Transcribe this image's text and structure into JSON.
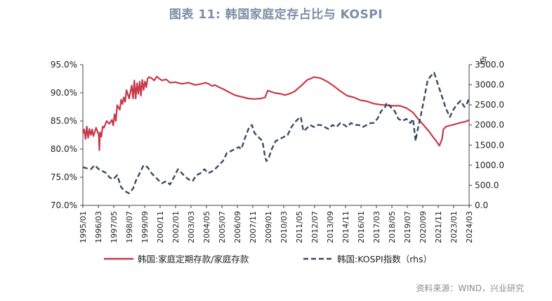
{
  "title": "图表 11: 韩国家庭定存占比与 KOSPI",
  "source": "资料来源：WIND，兴业研究",
  "chart_data": {
    "type": "line",
    "y_left": {
      "ticks": [
        "95.0%",
        "90.0%",
        "85.0%",
        "80.0%",
        "75.0%",
        "70.0%"
      ],
      "range": [
        70,
        95
      ]
    },
    "y_right": {
      "label": "点",
      "ticks": [
        "3500.0",
        "3000.0",
        "2500.0",
        "2000.0",
        "1500.0",
        "1000.0",
        "500.0",
        "0.0"
      ],
      "range": [
        0,
        3500
      ]
    },
    "x_ticks": [
      "1995/01",
      "1996/03",
      "1997/05",
      "1998/07",
      "1999/09",
      "2000/11",
      "2002/01",
      "2003/03",
      "2004/05",
      "2005/07",
      "2006/09",
      "2007/11",
      "2009/01",
      "2010/03",
      "2011/05",
      "2012/07",
      "2013/09",
      "2014/11",
      "2016/01",
      "2017/03",
      "2018/05",
      "2019/07",
      "2020/09",
      "2021/11",
      "2023/01",
      "2024/03"
    ],
    "series": [
      {
        "name": "韩国:家庭定期存款/家庭存款",
        "axis": "left",
        "color": "#c8394b",
        "style": "solid",
        "x": [
          1995.0,
          1995.1,
          1995.2,
          1995.3,
          1995.4,
          1995.5,
          1995.6,
          1995.7,
          1995.8,
          1996.0,
          1996.2,
          1996.25,
          1996.3,
          1996.4,
          1996.5,
          1996.6,
          1996.8,
          1997.0,
          1997.2,
          1997.3,
          1997.4,
          1997.5,
          1997.6,
          1997.8,
          1997.9,
          1998.0,
          1998.1,
          1998.2,
          1998.3,
          1998.5,
          1998.7,
          1998.8,
          1998.9,
          1999.0,
          1999.1,
          1999.2,
          1999.3,
          1999.4,
          1999.5,
          1999.6,
          1999.7,
          1999.8,
          1999.9,
          2000.0,
          2000.2,
          2000.4,
          2000.6,
          2000.8,
          2001.0,
          2001.3,
          2001.6,
          2002.0,
          2002.5,
          2003.0,
          2003.5,
          2004.0,
          2004.3,
          2004.6,
          2004.8,
          2005.0,
          2005.3,
          2005.6,
          2006.0,
          2006.5,
          2006.8,
          2007.0,
          2007.5,
          2008.0,
          2008.5,
          2008.8,
          2009.0,
          2009.5,
          2010.0,
          2010.3,
          2010.6,
          2011.0,
          2011.5,
          2012.0,
          2012.5,
          2013.0,
          2013.5,
          2014.0,
          2014.5,
          2015.0,
          2015.5,
          2016.0,
          2016.5,
          2017.0,
          2017.5,
          2018.0,
          2018.5,
          2019.0,
          2019.5,
          2020.0,
          2020.3,
          2020.6,
          2020.9,
          2021.2,
          2021.5,
          2021.8,
          2022.0,
          2022.2,
          2022.3,
          2022.5,
          2022.8,
          2023.0,
          2023.3,
          2023.6,
          2024.0,
          2024.3
        ],
        "y": [
          82.8,
          83.5,
          81.8,
          84.0,
          82.0,
          83.6,
          82.5,
          83.5,
          82.3,
          83.8,
          82.5,
          79.8,
          83.0,
          82.2,
          84.0,
          83.8,
          85.0,
          84.5,
          85.2,
          84.2,
          86.2,
          85.0,
          87.8,
          87.0,
          88.8,
          88.0,
          89.2,
          88.4,
          90.5,
          89.0,
          91.3,
          89.0,
          92.2,
          89.0,
          91.7,
          89.8,
          92.0,
          89.5,
          92.3,
          90.5,
          92.0,
          91.0,
          92.5,
          92.8,
          92.6,
          92.2,
          92.9,
          92.5,
          92.2,
          92.4,
          91.8,
          91.9,
          91.6,
          91.8,
          91.4,
          91.6,
          91.8,
          91.5,
          91.2,
          91.4,
          91.0,
          90.7,
          90.2,
          89.6,
          89.4,
          89.3,
          89.0,
          88.9,
          89.0,
          89.2,
          90.4,
          90.0,
          89.8,
          89.6,
          89.8,
          90.2,
          91.2,
          92.3,
          92.8,
          92.6,
          92.0,
          91.2,
          90.3,
          89.5,
          89.2,
          88.7,
          88.5,
          88.1,
          87.9,
          87.8,
          87.7,
          87.7,
          87.3,
          86.5,
          85.6,
          84.8,
          84.0,
          83.2,
          82.2,
          81.3,
          80.6,
          81.8,
          83.5,
          84.0,
          84.2,
          84.3,
          84.5,
          84.7,
          84.9,
          85.2
        ]
      },
      {
        "name": "韩国:KOSPI指数（rhs）",
        "axis": "right",
        "color": "#3a4a63",
        "style": "dashed",
        "x": [
          1995.0,
          1995.3,
          1995.6,
          1995.9,
          1996.2,
          1996.5,
          1996.8,
          1997.0,
          1997.3,
          1997.6,
          1997.9,
          1998.2,
          1998.5,
          1998.8,
          1999.0,
          1999.3,
          1999.6,
          1999.9,
          2000.2,
          2000.5,
          2000.8,
          2001.0,
          2001.3,
          2001.6,
          2001.9,
          2002.2,
          2002.5,
          2002.8,
          2003.0,
          2003.3,
          2003.6,
          2003.9,
          2004.2,
          2004.5,
          2004.8,
          2005.0,
          2005.3,
          2005.6,
          2005.9,
          2006.2,
          2006.5,
          2006.8,
          2007.0,
          2007.3,
          2007.6,
          2007.8,
          2008.0,
          2008.3,
          2008.6,
          2008.8,
          2008.9,
          2009.1,
          2009.3,
          2009.6,
          2009.9,
          2010.2,
          2010.5,
          2010.8,
          2011.0,
          2011.3,
          2011.5,
          2011.7,
          2011.9,
          2012.2,
          2012.5,
          2012.8,
          2013.0,
          2013.3,
          2013.6,
          2013.9,
          2014.2,
          2014.5,
          2014.8,
          2015.0,
          2015.3,
          2015.6,
          2015.9,
          2016.2,
          2016.5,
          2016.8,
          2017.0,
          2017.3,
          2017.6,
          2017.9,
          2018.0,
          2018.3,
          2018.6,
          2018.9,
          2019.2,
          2019.5,
          2019.8,
          2020.0,
          2020.2,
          2020.3,
          2020.6,
          2020.9,
          2021.1,
          2021.3,
          2021.6,
          2021.9,
          2022.2,
          2022.5,
          2022.8,
          2023.0,
          2023.3,
          2023.6,
          2023.9,
          2024.1,
          2024.3
        ],
        "y": [
          950,
          920,
          900,
          1000,
          900,
          850,
          800,
          700,
          650,
          750,
          450,
          350,
          300,
          420,
          600,
          800,
          1000,
          950,
          800,
          700,
          600,
          550,
          600,
          520,
          700,
          900,
          800,
          700,
          650,
          600,
          750,
          800,
          900,
          800,
          850,
          900,
          1000,
          1100,
          1300,
          1350,
          1400,
          1450,
          1400,
          1700,
          1950,
          2000,
          1800,
          1700,
          1600,
          1200,
          1100,
          1200,
          1400,
          1600,
          1650,
          1700,
          1750,
          1950,
          2050,
          2150,
          2200,
          1850,
          1900,
          2000,
          1950,
          2000,
          2000,
          1950,
          1900,
          2000,
          1950,
          2050,
          2000,
          1950,
          2050,
          2000,
          2000,
          1950,
          2000,
          2050,
          2050,
          2150,
          2350,
          2450,
          2550,
          2450,
          2350,
          2150,
          2100,
          2150,
          2050,
          2150,
          1600,
          1800,
          2250,
          2750,
          3100,
          3200,
          3300,
          3000,
          2700,
          2400,
          2200,
          2350,
          2500,
          2600,
          2450,
          2550,
          2700
        ]
      }
    ]
  }
}
